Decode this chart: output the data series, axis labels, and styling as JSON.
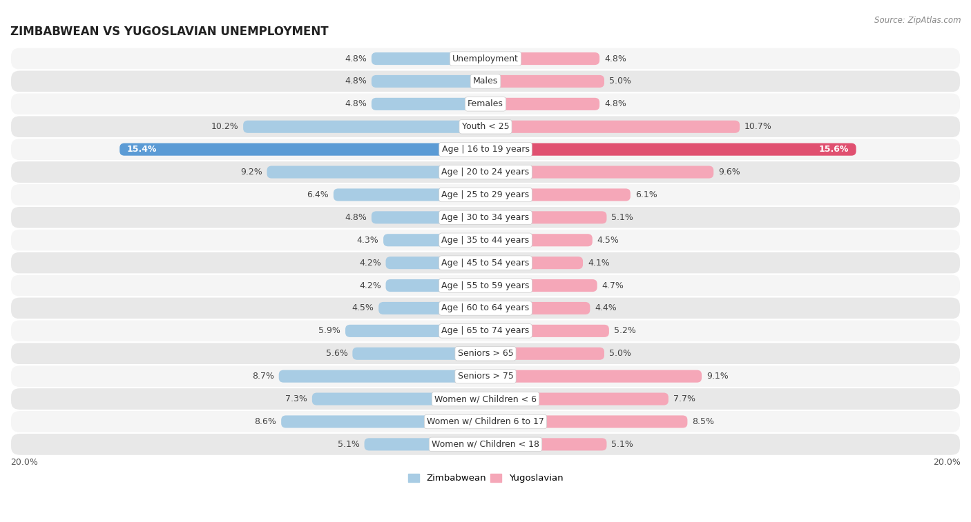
{
  "title": "ZIMBABWEAN VS YUGOSLAVIAN UNEMPLOYMENT",
  "source": "Source: ZipAtlas.com",
  "categories": [
    "Unemployment",
    "Males",
    "Females",
    "Youth < 25",
    "Age | 16 to 19 years",
    "Age | 20 to 24 years",
    "Age | 25 to 29 years",
    "Age | 30 to 34 years",
    "Age | 35 to 44 years",
    "Age | 45 to 54 years",
    "Age | 55 to 59 years",
    "Age | 60 to 64 years",
    "Age | 65 to 74 years",
    "Seniors > 65",
    "Seniors > 75",
    "Women w/ Children < 6",
    "Women w/ Children 6 to 17",
    "Women w/ Children < 18"
  ],
  "zimbabwean": [
    4.8,
    4.8,
    4.8,
    10.2,
    15.4,
    9.2,
    6.4,
    4.8,
    4.3,
    4.2,
    4.2,
    4.5,
    5.9,
    5.6,
    8.7,
    7.3,
    8.6,
    5.1
  ],
  "yugoslavian": [
    4.8,
    5.0,
    4.8,
    10.7,
    15.6,
    9.6,
    6.1,
    5.1,
    4.5,
    4.1,
    4.7,
    4.4,
    5.2,
    5.0,
    9.1,
    7.7,
    8.5,
    5.1
  ],
  "zim_color_normal": "#a8cce4",
  "yug_color_normal": "#f5a7b8",
  "zim_color_highlight": "#5b9bd5",
  "yug_color_highlight": "#e05070",
  "row_bg_light": "#f5f5f5",
  "row_bg_dark": "#e8e8e8",
  "max_val": 20.0,
  "highlight_rows": [
    4
  ],
  "title_fontsize": 12,
  "value_fontsize": 9,
  "category_fontsize": 9,
  "source_fontsize": 8.5
}
